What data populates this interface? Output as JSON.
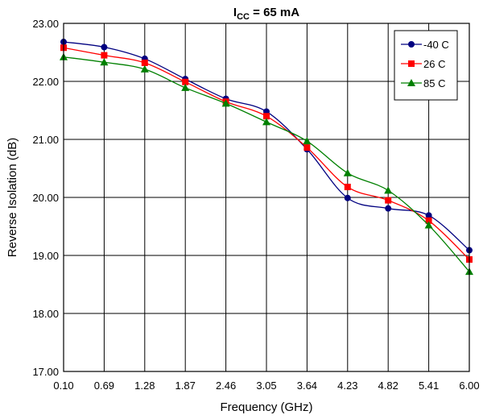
{
  "chart_data": {
    "type": "line",
    "title_main": "I",
    "title_sub": "CC",
    "title_rest": " = 65 mA",
    "xlabel": "Frequency (GHz)",
    "ylabel": "Reverse Isolation (dB)",
    "categories": [
      "0.10",
      "0.69",
      "1.28",
      "1.87",
      "2.46",
      "3.05",
      "3.64",
      "4.23",
      "4.82",
      "5.41",
      "6.00"
    ],
    "y_ticks": [
      "17.00",
      "18.00",
      "19.00",
      "20.00",
      "21.00",
      "22.00",
      "23.00"
    ],
    "ylim": [
      17,
      23
    ],
    "grid": true,
    "legend_position": "top-right",
    "series": [
      {
        "name": "-40 C",
        "color": "#000080",
        "marker": "circle",
        "values": [
          22.68,
          22.59,
          22.39,
          22.04,
          21.7,
          21.48,
          20.83,
          19.99,
          19.81,
          19.69,
          19.09
        ]
      },
      {
        "name": "26 C",
        "color": "#ff0000",
        "marker": "square",
        "values": [
          22.58,
          22.45,
          22.32,
          21.99,
          21.65,
          21.4,
          20.86,
          20.18,
          19.95,
          19.6,
          18.93
        ]
      },
      {
        "name": "85 C",
        "color": "#008000",
        "marker": "triangle",
        "values": [
          22.42,
          22.33,
          22.21,
          21.89,
          21.62,
          21.3,
          20.97,
          20.42,
          20.12,
          19.52,
          18.72
        ]
      }
    ]
  }
}
